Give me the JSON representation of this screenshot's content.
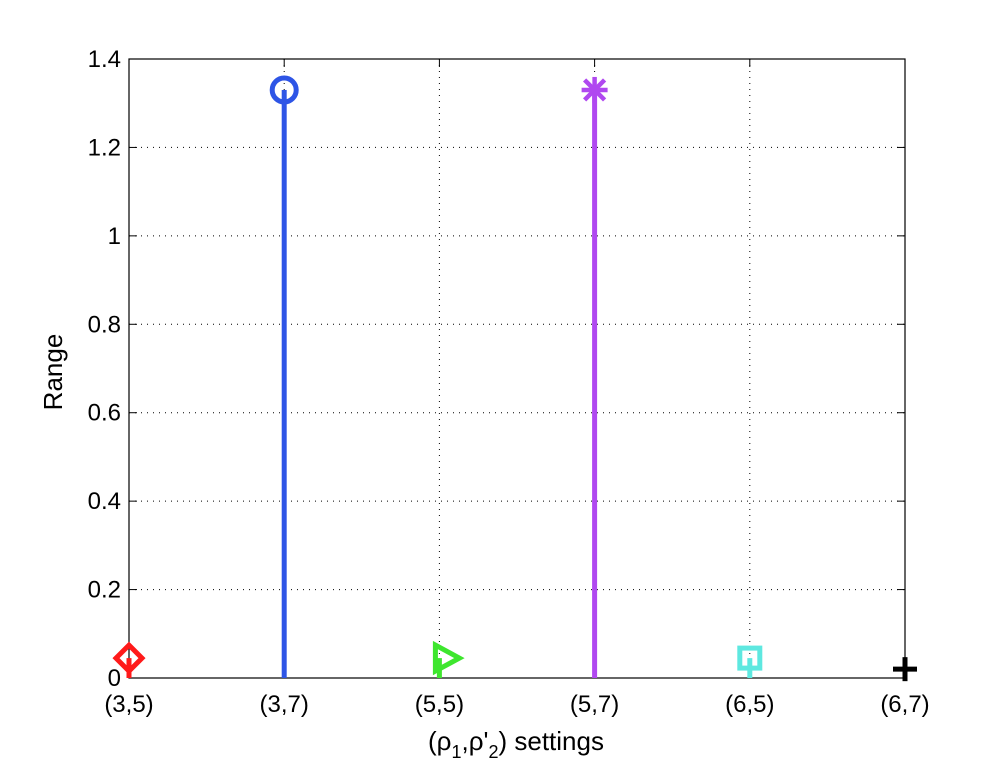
{
  "chart_data": {
    "type": "stem",
    "title": "",
    "xlabel": {
      "prefix": "(ρ",
      "sub1": "1",
      "mid": ",ρ'",
      "sub2": "2",
      "suffix": ") settings"
    },
    "ylabel": "Range",
    "ylim": [
      0,
      1.4
    ],
    "yticks": [
      "0",
      "0.2",
      "0.4",
      "0.6",
      "0.8",
      "1",
      "1.2",
      "1.4"
    ],
    "grid": true,
    "categories": [
      "(3,5)",
      "(3,7)",
      "(5,5)",
      "(5,7)",
      "(6,5)",
      "(6,7)"
    ],
    "series": [
      {
        "category": "(3,5)",
        "value": 0.045,
        "marker": "diamond",
        "color": "#ff1a1a"
      },
      {
        "category": "(3,7)",
        "value": 1.33,
        "marker": "circle",
        "color": "#2e55e6"
      },
      {
        "category": "(5,5)",
        "value": 0.045,
        "marker": "triangle-right",
        "color": "#3ee62e"
      },
      {
        "category": "(5,7)",
        "value": 1.33,
        "marker": "asterisk",
        "color": "#b048f0"
      },
      {
        "category": "(6,5)",
        "value": 0.045,
        "marker": "square",
        "color": "#5ee8e0"
      },
      {
        "category": "(6,7)",
        "value": 0.02,
        "marker": "plus",
        "color": "#000000"
      }
    ]
  }
}
